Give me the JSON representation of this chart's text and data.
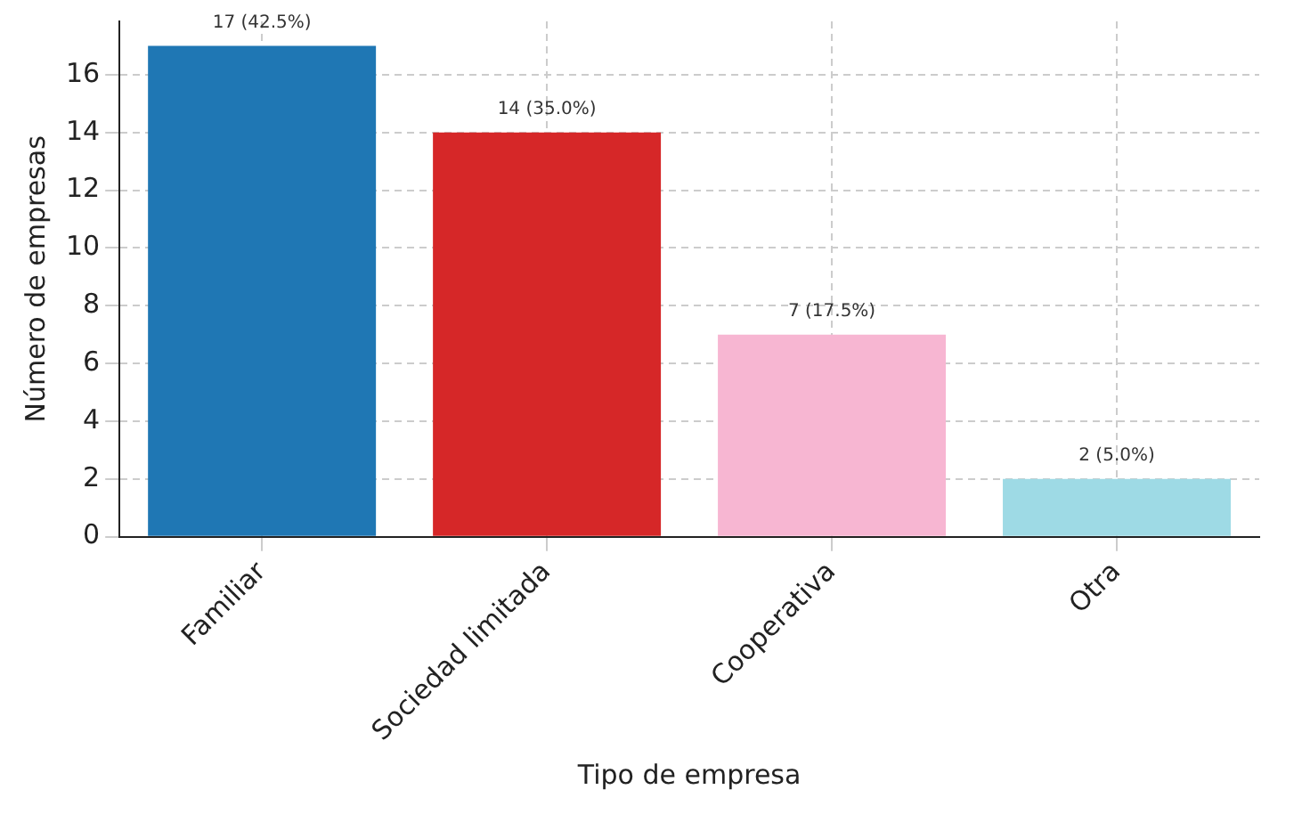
{
  "chart_data": {
    "type": "bar",
    "xlabel": "Tipo de empresa",
    "ylabel": "Número de empresas",
    "categories": [
      "Familiar",
      "Sociedad limitada",
      "Cooperativa",
      "Otra"
    ],
    "values": [
      17,
      14,
      7,
      2
    ],
    "colors": [
      "#1f77b4",
      "#d62728",
      "#f7b6d2",
      "#9edae5"
    ],
    "value_labels": [
      "17 (42.5%)",
      "14 (35.0%)",
      "7 (17.5%)",
      "2 (5.0%)"
    ],
    "ylim": [
      0,
      17.85
    ],
    "yticks": [
      0,
      2,
      4,
      6,
      8,
      10,
      12,
      14,
      16
    ],
    "grid": true,
    "legend": false
  }
}
